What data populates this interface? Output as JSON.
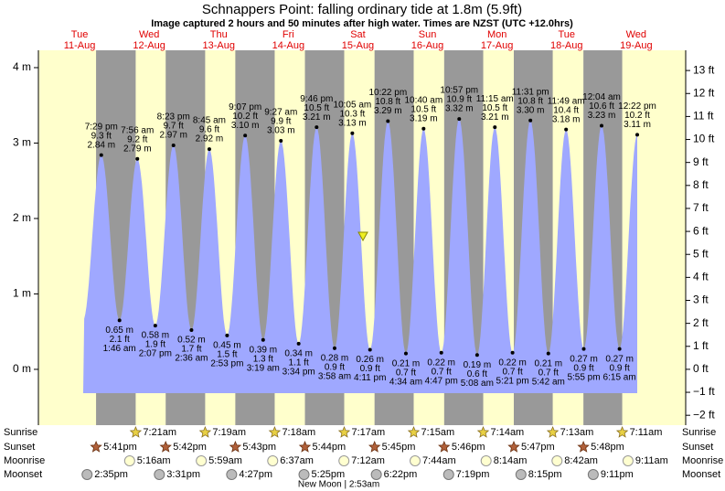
{
  "chart_data": {
    "type": "tide",
    "title": "Schnappers Point: falling  ordinary tide at 1.8m (5.9ft)",
    "subtitle": "Image captured 2 hours and 50 minutes after high water. Times are NZST (UTC +12.0hrs)",
    "ylim": [
      -0.74,
      4.23
    ],
    "yticks": [
      {
        "value": 0,
        "label": "0 m"
      },
      {
        "value": 1,
        "label": "1 m"
      },
      {
        "value": 2,
        "label": "2 m"
      },
      {
        "value": 3,
        "label": "3 m"
      },
      {
        "value": 4,
        "label": "4 m"
      }
    ],
    "y2lim": [
      -2.43,
      13.88
    ],
    "y2ticks": [
      {
        "value": -2,
        "label": "−2 ft"
      },
      {
        "value": -1,
        "label": "−1 ft"
      },
      {
        "value": 0,
        "label": "0 ft"
      },
      {
        "value": 1,
        "label": "1 ft"
      },
      {
        "value": 2,
        "label": "2 ft"
      },
      {
        "value": 3,
        "label": "3 ft"
      },
      {
        "value": 4,
        "label": "4 ft"
      },
      {
        "value": 5,
        "label": "5 ft"
      },
      {
        "value": 6,
        "label": "6 ft"
      },
      {
        "value": 7,
        "label": "7 ft"
      },
      {
        "value": 8,
        "label": "8 ft"
      },
      {
        "value": 9,
        "label": "9 ft"
      },
      {
        "value": 10,
        "label": "10 ft"
      },
      {
        "value": 11,
        "label": "11 ft"
      },
      {
        "value": 12,
        "label": "12 ft"
      },
      {
        "value": 13,
        "label": "13 ft"
      }
    ],
    "color": "#9fa8ff",
    "rows": {
      "sunrise": "Sunrise",
      "sunset": "Sunset",
      "moonrise": "Moonrise",
      "moonset": "Moonset"
    },
    "days": [
      {
        "weekday": "Tue",
        "date": "11-Aug",
        "sunrise": null,
        "sunset": "5:41pm",
        "moonrise": null,
        "moonset": "2:35pm",
        "tides": [
          {
            "time": "7:29 pm",
            "m": 2.84,
            "m_label": "2.84 m",
            "ft": 9.3,
            "ft_label": "9.3 ft"
          }
        ]
      },
      {
        "weekday": "Wed",
        "date": "12-Aug",
        "sunrise": "7:21am",
        "sunset": "5:42pm",
        "moonrise": "5:16am",
        "moonset": "3:31pm",
        "tides": [
          {
            "time": "1:46 am",
            "m": 0.65,
            "m_label": "0.65 m",
            "ft": 2.1,
            "ft_label": "2.1 ft"
          },
          {
            "time": "7:56 am",
            "m": 2.79,
            "m_label": "2.79 m",
            "ft": 9.2,
            "ft_label": "9.2 ft"
          },
          {
            "time": "2:07 pm",
            "m": 0.58,
            "m_label": "0.58 m",
            "ft": 1.9,
            "ft_label": "1.9 ft"
          },
          {
            "time": "8:23 pm",
            "m": 2.97,
            "m_label": "2.97 m",
            "ft": 9.7,
            "ft_label": "9.7 ft"
          }
        ]
      },
      {
        "weekday": "Thu",
        "date": "13-Aug",
        "sunrise": "7:19am",
        "sunset": "5:43pm",
        "moonrise": "5:59am",
        "moonset": "4:27pm",
        "tides": [
          {
            "time": "2:36 am",
            "m": 0.52,
            "m_label": "0.52 m",
            "ft": 1.7,
            "ft_label": "1.7 ft"
          },
          {
            "time": "8:45 am",
            "m": 2.92,
            "m_label": "2.92 m",
            "ft": 9.6,
            "ft_label": "9.6 ft"
          },
          {
            "time": "2:53 pm",
            "m": 0.45,
            "m_label": "0.45 m",
            "ft": 1.5,
            "ft_label": "1.5 ft"
          },
          {
            "time": "9:07 pm",
            "m": 3.1,
            "m_label": "3.10 m",
            "ft": 10.2,
            "ft_label": "10.2 ft"
          }
        ]
      },
      {
        "weekday": "Fri",
        "date": "14-Aug",
        "sunrise": "7:18am",
        "sunset": "5:44pm",
        "moonrise": "6:37am",
        "moonset": "5:25pm",
        "tides": [
          {
            "time": "3:19 am",
            "m": 0.39,
            "m_label": "0.39 m",
            "ft": 1.3,
            "ft_label": "1.3 ft"
          },
          {
            "time": "9:27 am",
            "m": 3.03,
            "m_label": "3.03 m",
            "ft": 9.9,
            "ft_label": "9.9 ft"
          },
          {
            "time": "3:34 pm",
            "m": 0.34,
            "m_label": "0.34 m",
            "ft": 1.1,
            "ft_label": "1.1 ft"
          },
          {
            "time": "9:46 pm",
            "m": 3.21,
            "m_label": "3.21 m",
            "ft": 10.5,
            "ft_label": "10.5 ft"
          }
        ]
      },
      {
        "weekday": "Sat",
        "date": "15-Aug",
        "sunrise": "7:17am",
        "sunset": "5:45pm",
        "moonrise": "7:12am",
        "moonset": "6:22pm",
        "moon_phase": "New Moon | 2:53am",
        "tides": [
          {
            "time": "3:58 am",
            "m": 0.28,
            "m_label": "0.28 m",
            "ft": 0.9,
            "ft_label": "0.9 ft"
          },
          {
            "time": "10:05 am",
            "m": 3.13,
            "m_label": "3.13 m",
            "ft": 10.3,
            "ft_label": "10.3 ft"
          },
          {
            "time": "4:11 pm",
            "m": 0.26,
            "m_label": "0.26 m",
            "ft": 0.9,
            "ft_label": "0.9 ft"
          },
          {
            "time": "10:22 pm",
            "m": 3.29,
            "m_label": "3.29 m",
            "ft": 10.8,
            "ft_label": "10.8 ft"
          }
        ]
      },
      {
        "weekday": "Sun",
        "date": "16-Aug",
        "sunrise": "7:15am",
        "sunset": "5:46pm",
        "moonrise": "7:44am",
        "moonset": "7:19pm",
        "tides": [
          {
            "time": "4:34 am",
            "m": 0.21,
            "m_label": "0.21 m",
            "ft": 0.7,
            "ft_label": "0.7 ft"
          },
          {
            "time": "10:40 am",
            "m": 3.19,
            "m_label": "3.19 m",
            "ft": 10.5,
            "ft_label": "10.5 ft"
          },
          {
            "time": "4:47 pm",
            "m": 0.22,
            "m_label": "0.22 m",
            "ft": 0.7,
            "ft_label": "0.7 ft"
          },
          {
            "time": "10:57 pm",
            "m": 3.32,
            "m_label": "3.32 m",
            "ft": 10.9,
            "ft_label": "10.9 ft"
          }
        ]
      },
      {
        "weekday": "Mon",
        "date": "17-Aug",
        "sunrise": "7:14am",
        "sunset": "5:47pm",
        "moonrise": "8:14am",
        "moonset": "8:15pm",
        "tides": [
          {
            "time": "5:08 am",
            "m": 0.19,
            "m_label": "0.19 m",
            "ft": 0.6,
            "ft_label": "0.6 ft"
          },
          {
            "time": "11:15 am",
            "m": 3.21,
            "m_label": "3.21 m",
            "ft": 10.5,
            "ft_label": "10.5 ft"
          },
          {
            "time": "5:21 pm",
            "m": 0.22,
            "m_label": "0.22 m",
            "ft": 0.7,
            "ft_label": "0.7 ft"
          },
          {
            "time": "11:31 pm",
            "m": 3.3,
            "m_label": "3.30 m",
            "ft": 10.8,
            "ft_label": "10.8 ft"
          }
        ]
      },
      {
        "weekday": "Tue",
        "date": "18-Aug",
        "sunrise": "7:13am",
        "sunset": "5:48pm",
        "moonrise": "8:42am",
        "moonset": "9:11pm",
        "tides": [
          {
            "time": "5:42 am",
            "m": 0.21,
            "m_label": "0.21 m",
            "ft": 0.7,
            "ft_label": "0.7 ft"
          },
          {
            "time": "11:49 am",
            "m": 3.18,
            "m_label": "3.18 m",
            "ft": 10.4,
            "ft_label": "10.4 ft"
          },
          {
            "time": "5:55 pm",
            "m": 0.27,
            "m_label": "0.27 m",
            "ft": 0.9,
            "ft_label": "0.9 ft"
          }
        ]
      },
      {
        "weekday": "Wed",
        "date": "19-Aug",
        "sunrise": "7:11am",
        "sunset": null,
        "moonrise": "9:11am",
        "moonset": null,
        "tides": [
          {
            "time": "12:04 am",
            "m": 3.23,
            "m_label": "3.23 m",
            "ft": 10.6,
            "ft_label": "10.6 ft"
          },
          {
            "time": "6:15 am",
            "m": 0.27,
            "m_label": "0.27 m",
            "ft": 0.9,
            "ft_label": "0.9 ft"
          },
          {
            "time": "12:22 pm",
            "m": 3.11,
            "m_label": "3.11 m",
            "ft": 10.2,
            "ft_label": "10.2 ft"
          }
        ]
      }
    ]
  }
}
